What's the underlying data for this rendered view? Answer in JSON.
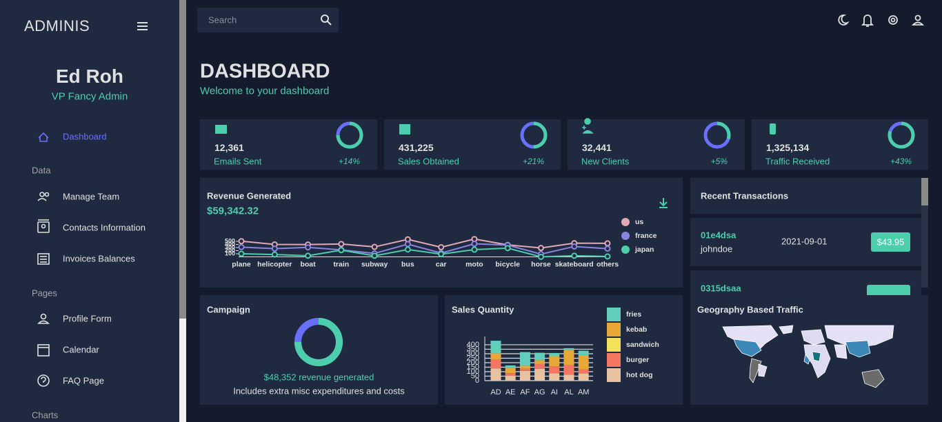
{
  "sidebar": {
    "brand": "ADMINIS",
    "user": {
      "name": "Ed Roh",
      "role": "VP Fancy Admin"
    },
    "nav": {
      "top": "Dashboard",
      "sections": [
        {
          "title": "Data",
          "items": [
            "Manage Team",
            "Contacts Information",
            "Invoices Balances"
          ]
        },
        {
          "title": "Pages",
          "items": [
            "Profile Form",
            "Calendar",
            "FAQ Page"
          ]
        },
        {
          "title": "Charts",
          "items": []
        }
      ]
    }
  },
  "topbar": {
    "search_placeholder": "Search"
  },
  "header": {
    "title": "DASHBOARD",
    "subtitle": "Welcome to your dashboard"
  },
  "stats": [
    {
      "value": "12,361",
      "label": "Emails Sent",
      "increase": "+14%",
      "progress": 0.75
    },
    {
      "value": "431,225",
      "label": "Sales Obtained",
      "increase": "+21%",
      "progress": 0.5
    },
    {
      "value": "32,441",
      "label": "New Clients",
      "increase": "+5%",
      "progress": 0.3
    },
    {
      "value": "1,325,134",
      "label": "Traffic Received",
      "increase": "+43%",
      "progress": 0.8
    }
  ],
  "revenue": {
    "title": "Revenue Generated",
    "amount": "$59,342.32",
    "chart": {
      "type": "line",
      "stacked": true,
      "categories": [
        "plane",
        "helicopter",
        "boat",
        "train",
        "subway",
        "bus",
        "car",
        "moto",
        "bicycle",
        "horse",
        "skateboard",
        "others"
      ],
      "series": [
        {
          "name": "us",
          "color": "#e2a8b5",
          "values": [
            191,
            136,
            91,
            190,
            211,
            152,
            189,
            152,
            8,
            197,
            107,
            170
          ]
        },
        {
          "name": "france",
          "color": "#8a84e0",
          "values": [
            212,
            190,
            270,
            9,
            75,
            175,
            33,
            189,
            97,
            87,
            299,
            251
          ]
        },
        {
          "name": "japan",
          "color": "#4cceac",
          "values": [
            101,
            75,
            36,
            216,
            35,
            236,
            88,
            232,
            281,
            1,
            35,
            14
          ]
        }
      ],
      "ylim": [
        0,
        573
      ],
      "yticks": [
        100,
        200,
        300,
        400,
        500
      ]
    }
  },
  "transactions": {
    "title": "Recent Transactions",
    "rows": [
      {
        "txId": "01e4dsa",
        "user": "johndoe",
        "date": "2021-09-01",
        "cost": "$43.95"
      },
      {
        "txId": "0315dsaa"
      }
    ]
  },
  "campaign": {
    "title": "Campaign",
    "progress": 0.75,
    "revenue": "$48,352 revenue generated",
    "note": "Includes extra misc expenditures and costs"
  },
  "sales": {
    "title": "Sales Quantity",
    "chart": {
      "type": "bar",
      "stacked": true,
      "categories": [
        "AD",
        "AE",
        "AF",
        "AG",
        "AI",
        "AL",
        "AM"
      ],
      "series": [
        {
          "name": "fries",
          "color": "#61cdbb",
          "values": [
            140,
            29,
            152,
            83,
            35,
            18,
            49
          ]
        },
        {
          "name": "kebab",
          "color": "#e8a838",
          "values": [
            72,
            58,
            34,
            43,
            112,
            167,
            158
          ]
        },
        {
          "name": "sandwich",
          "color": "#f1e15b",
          "values": [
            0,
            0,
            0,
            0,
            0,
            0,
            0
          ]
        },
        {
          "name": "burger",
          "color": "#f47560",
          "values": [
            96,
            28,
            23,
            52,
            80,
            111,
            47
          ]
        },
        {
          "name": "hot dog",
          "color": "#e8c1a0",
          "values": [
            137,
            55,
            109,
            133,
            81,
            66,
            80
          ]
        }
      ],
      "ylim": [
        0,
        445
      ],
      "yticks": [
        0,
        50,
        100,
        150,
        200,
        250,
        300,
        350,
        400
      ]
    }
  },
  "geography": {
    "title": "Geography Based Traffic"
  }
}
